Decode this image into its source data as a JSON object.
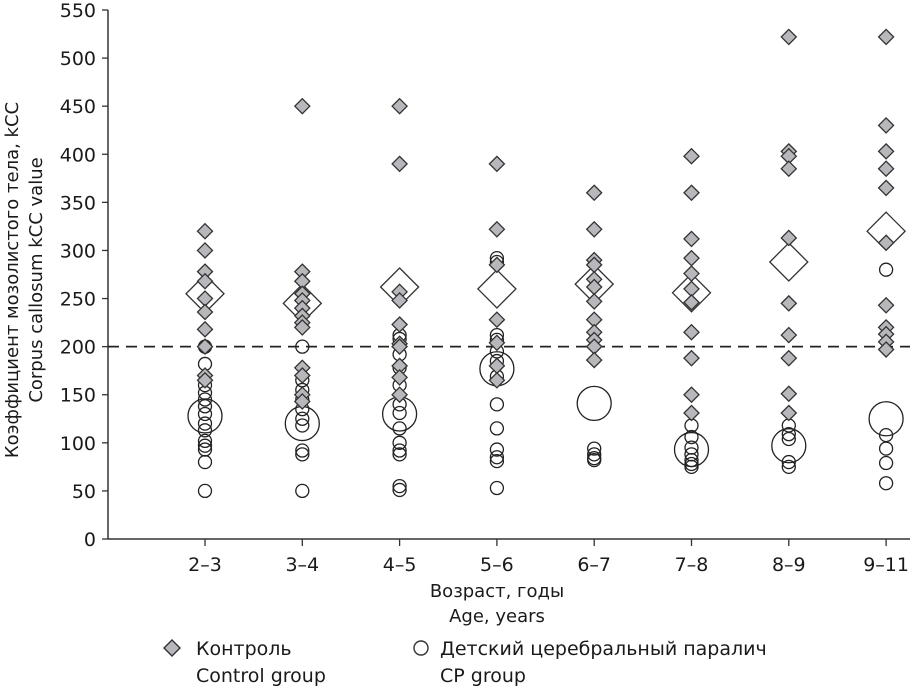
{
  "chart_data": {
    "type": "scatter",
    "title": "",
    "ylabel_lines": [
      "Коэффициент мозолистого тела, kCC",
      "Corpus callosum kCC value"
    ],
    "xlabel_lines": [
      "Возраст, годы",
      "Age, years"
    ],
    "ylim": [
      0,
      550
    ],
    "yticks": [
      0,
      50,
      100,
      150,
      200,
      250,
      300,
      350,
      400,
      450,
      500,
      550
    ],
    "categories": [
      "2–3",
      "3–4",
      "4–5",
      "5–6",
      "6–7",
      "7–8",
      "8–9",
      "9–11"
    ],
    "reference_line": {
      "y": 200,
      "style": "dashed"
    },
    "grid": false,
    "legend_position": "bottom",
    "series": [
      {
        "name": "Контроль",
        "name_en": "Control group",
        "marker": "diamond",
        "color": "#b8b8bc",
        "points": [
          [
            320,
            300,
            278,
            268,
            250,
            236,
            218,
            200,
            170,
            165
          ],
          [
            450,
            278,
            268,
            255,
            248,
            240,
            232,
            225,
            220,
            178,
            170,
            150,
            143
          ],
          [
            450,
            390,
            257,
            248,
            223,
            203,
            200,
            180,
            168,
            150
          ],
          [
            390,
            322,
            285,
            228,
            204,
            180,
            165
          ],
          [
            360,
            322,
            290,
            285,
            270,
            262,
            247,
            228,
            215,
            207,
            200,
            186
          ],
          [
            398,
            360,
            312,
            292,
            276,
            260,
            246,
            215,
            188,
            150,
            131
          ],
          [
            522,
            403,
            398,
            385,
            313,
            245,
            212,
            188,
            151,
            131
          ],
          [
            522,
            430,
            403,
            385,
            365,
            308,
            243,
            220,
            213,
            205,
            197
          ]
        ],
        "means": [
          255,
          245,
          262,
          260,
          265,
          256,
          288,
          320
        ]
      },
      {
        "name": "Детский церебральный паралич",
        "name_en": "CP group",
        "marker": "circle",
        "color": "#ffffff",
        "points": [
          [
            200,
            182,
            160,
            152,
            145,
            138,
            130,
            120,
            113,
            102,
            97,
            93,
            80,
            50
          ],
          [
            200,
            165,
            155,
            145,
            135,
            125,
            118,
            92,
            88,
            50
          ],
          [
            212,
            208,
            192,
            178,
            160,
            140,
            131,
            115,
            100,
            92,
            88,
            55,
            51
          ],
          [
            292,
            288,
            212,
            207,
            195,
            185,
            169,
            140,
            115,
            93,
            85,
            81,
            53
          ],
          [
            94,
            88,
            84,
            82
          ],
          [
            118,
            106,
            95,
            88,
            82,
            78,
            75
          ],
          [
            118,
            109,
            104,
            80,
            75
          ],
          [
            280,
            108,
            94,
            79,
            58
          ]
        ],
        "means": [
          128,
          120,
          130,
          177,
          141,
          93,
          97,
          125
        ]
      }
    ]
  },
  "legend": {
    "items": [
      {
        "label_ru": "Контроль",
        "label_en": "Control group",
        "marker": "diamond"
      },
      {
        "label_ru": "Детский церебральный паралич",
        "label_en": "CP group",
        "marker": "circle"
      }
    ]
  }
}
